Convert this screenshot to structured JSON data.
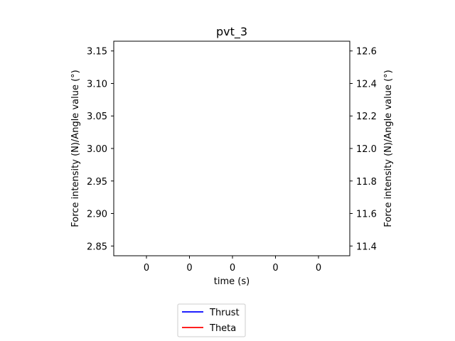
{
  "chart_data": {
    "type": "line",
    "title": "pvt_3",
    "xlabel": "time (s)",
    "ylabel_left": "Force intensity (N)/Angle value (°)",
    "ylabel_right": "Force intensity (N)/Angle value (°)",
    "x_tick_labels": [
      "0",
      "0",
      "0",
      "0",
      "0"
    ],
    "y_left": {
      "ticks": [
        2.85,
        2.9,
        2.95,
        3.0,
        3.05,
        3.1,
        3.15
      ],
      "tick_labels": [
        "2.85",
        "2.90",
        "2.95",
        "3.00",
        "3.05",
        "3.10",
        "3.15"
      ],
      "ylim": [
        2.835,
        3.165
      ]
    },
    "y_right": {
      "ticks": [
        11.4,
        11.6,
        11.8,
        12.0,
        12.2,
        12.4,
        12.6
      ],
      "tick_labels": [
        "11.4",
        "11.6",
        "11.8",
        "12.0",
        "12.2",
        "12.4",
        "12.6"
      ],
      "ylim": [
        11.34,
        12.66
      ]
    },
    "series": [
      {
        "name": "Thrust",
        "color": "#0000ff",
        "axis": "left",
        "values": []
      },
      {
        "name": "Theta",
        "color": "#ff0000",
        "axis": "right",
        "values": []
      }
    ],
    "grid": false,
    "legend_position": "below"
  }
}
